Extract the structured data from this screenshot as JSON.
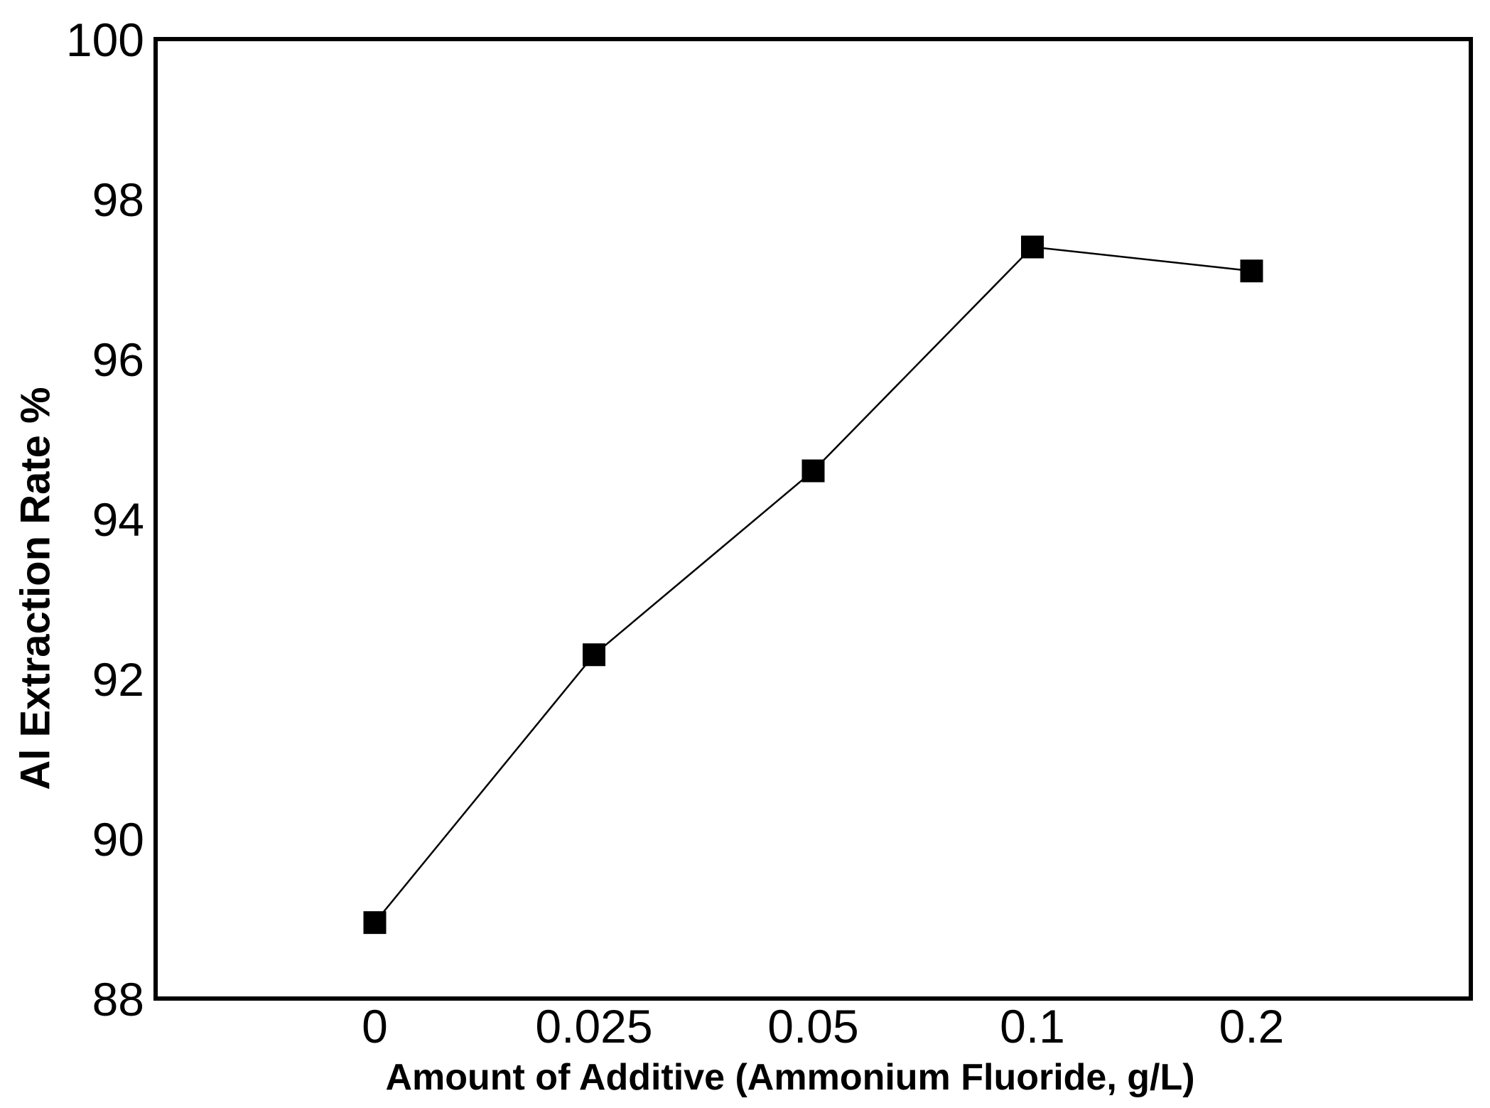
{
  "chart_data": {
    "type": "line",
    "x_categories": [
      "0",
      "0.025",
      "0.05",
      "0.1",
      "0.2"
    ],
    "series": [
      {
        "name": "Al extraction rate",
        "values": [
          88.95,
          92.3,
          94.6,
          97.4,
          97.1
        ]
      }
    ],
    "title": "",
    "xlabel": "Amount of Additive (Ammonium Fluoride, g/L)",
    "ylabel": "Al Extraction Rate %",
    "ylim": [
      88,
      100
    ],
    "yticks": [
      100,
      98,
      96,
      94,
      92,
      90,
      88
    ],
    "grid": false,
    "legend_position": "none",
    "marker": "filled-square",
    "line_color": "#000000",
    "marker_color": "#000000",
    "axis_color": "#000000",
    "background_color": "#ffffff"
  }
}
